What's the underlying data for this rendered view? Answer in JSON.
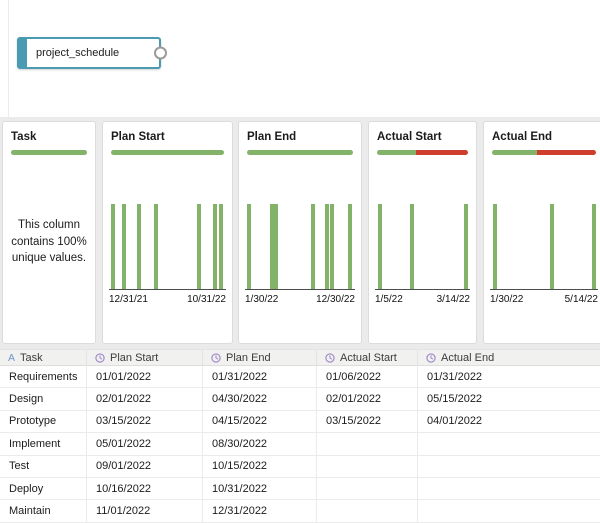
{
  "flow": {
    "node_label": "project_schedule"
  },
  "colors": {
    "bar_green": "#83b269",
    "quality_red": "#cf3e2c",
    "node_teal": "#4a9bb2"
  },
  "icons": {
    "string_type": "A",
    "date_type": "clock-icon",
    "output_port": "circle-port"
  },
  "profile_cards": [
    {
      "title": "Task",
      "quality_green_pct": 100,
      "note": "This column contains 100% unique values."
    },
    {
      "title": "Plan Start",
      "quality_green_pct": 100,
      "axis_left": "12/31/21",
      "axis_right": "10/31/22",
      "bar_positions_pct": [
        0,
        10.2,
        24,
        39.5,
        79.9,
        94.7,
        100
      ]
    },
    {
      "title": "Plan End",
      "quality_green_pct": 100,
      "axis_left": "1/30/22",
      "axis_right": "12/30/22",
      "bar_positions_pct": [
        0,
        22.4,
        26.9,
        63.4,
        77.2,
        82,
        100
      ]
    },
    {
      "title": "Actual Start",
      "quality_green_pct": 43,
      "axis_left": "1/5/22",
      "axis_right": "3/14/22",
      "bar_positions_pct": [
        1.4,
        38.2,
        100
      ]
    },
    {
      "title": "Actual End",
      "quality_green_pct": 43,
      "axis_left": "1/30/22",
      "axis_right": "5/14/22",
      "bar_positions_pct": [
        1,
        58.7,
        100
      ]
    }
  ],
  "grid": {
    "columns": [
      {
        "label": "Task",
        "type": "string"
      },
      {
        "label": "Plan Start",
        "type": "date"
      },
      {
        "label": "Plan End",
        "type": "date"
      },
      {
        "label": "Actual Start",
        "type": "date"
      },
      {
        "label": "Actual End",
        "type": "date"
      }
    ],
    "rows": [
      [
        "Requirements",
        "01/01/2022",
        "01/31/2022",
        "01/06/2022",
        "01/31/2022"
      ],
      [
        "Design",
        "02/01/2022",
        "04/30/2022",
        "02/01/2022",
        "05/15/2022"
      ],
      [
        "Prototype",
        "03/15/2022",
        "04/15/2022",
        "03/15/2022",
        "04/01/2022"
      ],
      [
        "Implement",
        "05/01/2022",
        "08/30/2022",
        "",
        ""
      ],
      [
        "Test",
        "09/01/2022",
        "10/15/2022",
        "",
        ""
      ],
      [
        "Deploy",
        "10/16/2022",
        "10/31/2022",
        "",
        ""
      ],
      [
        "Maintain",
        "11/01/2022",
        "12/31/2022",
        "",
        ""
      ]
    ]
  }
}
